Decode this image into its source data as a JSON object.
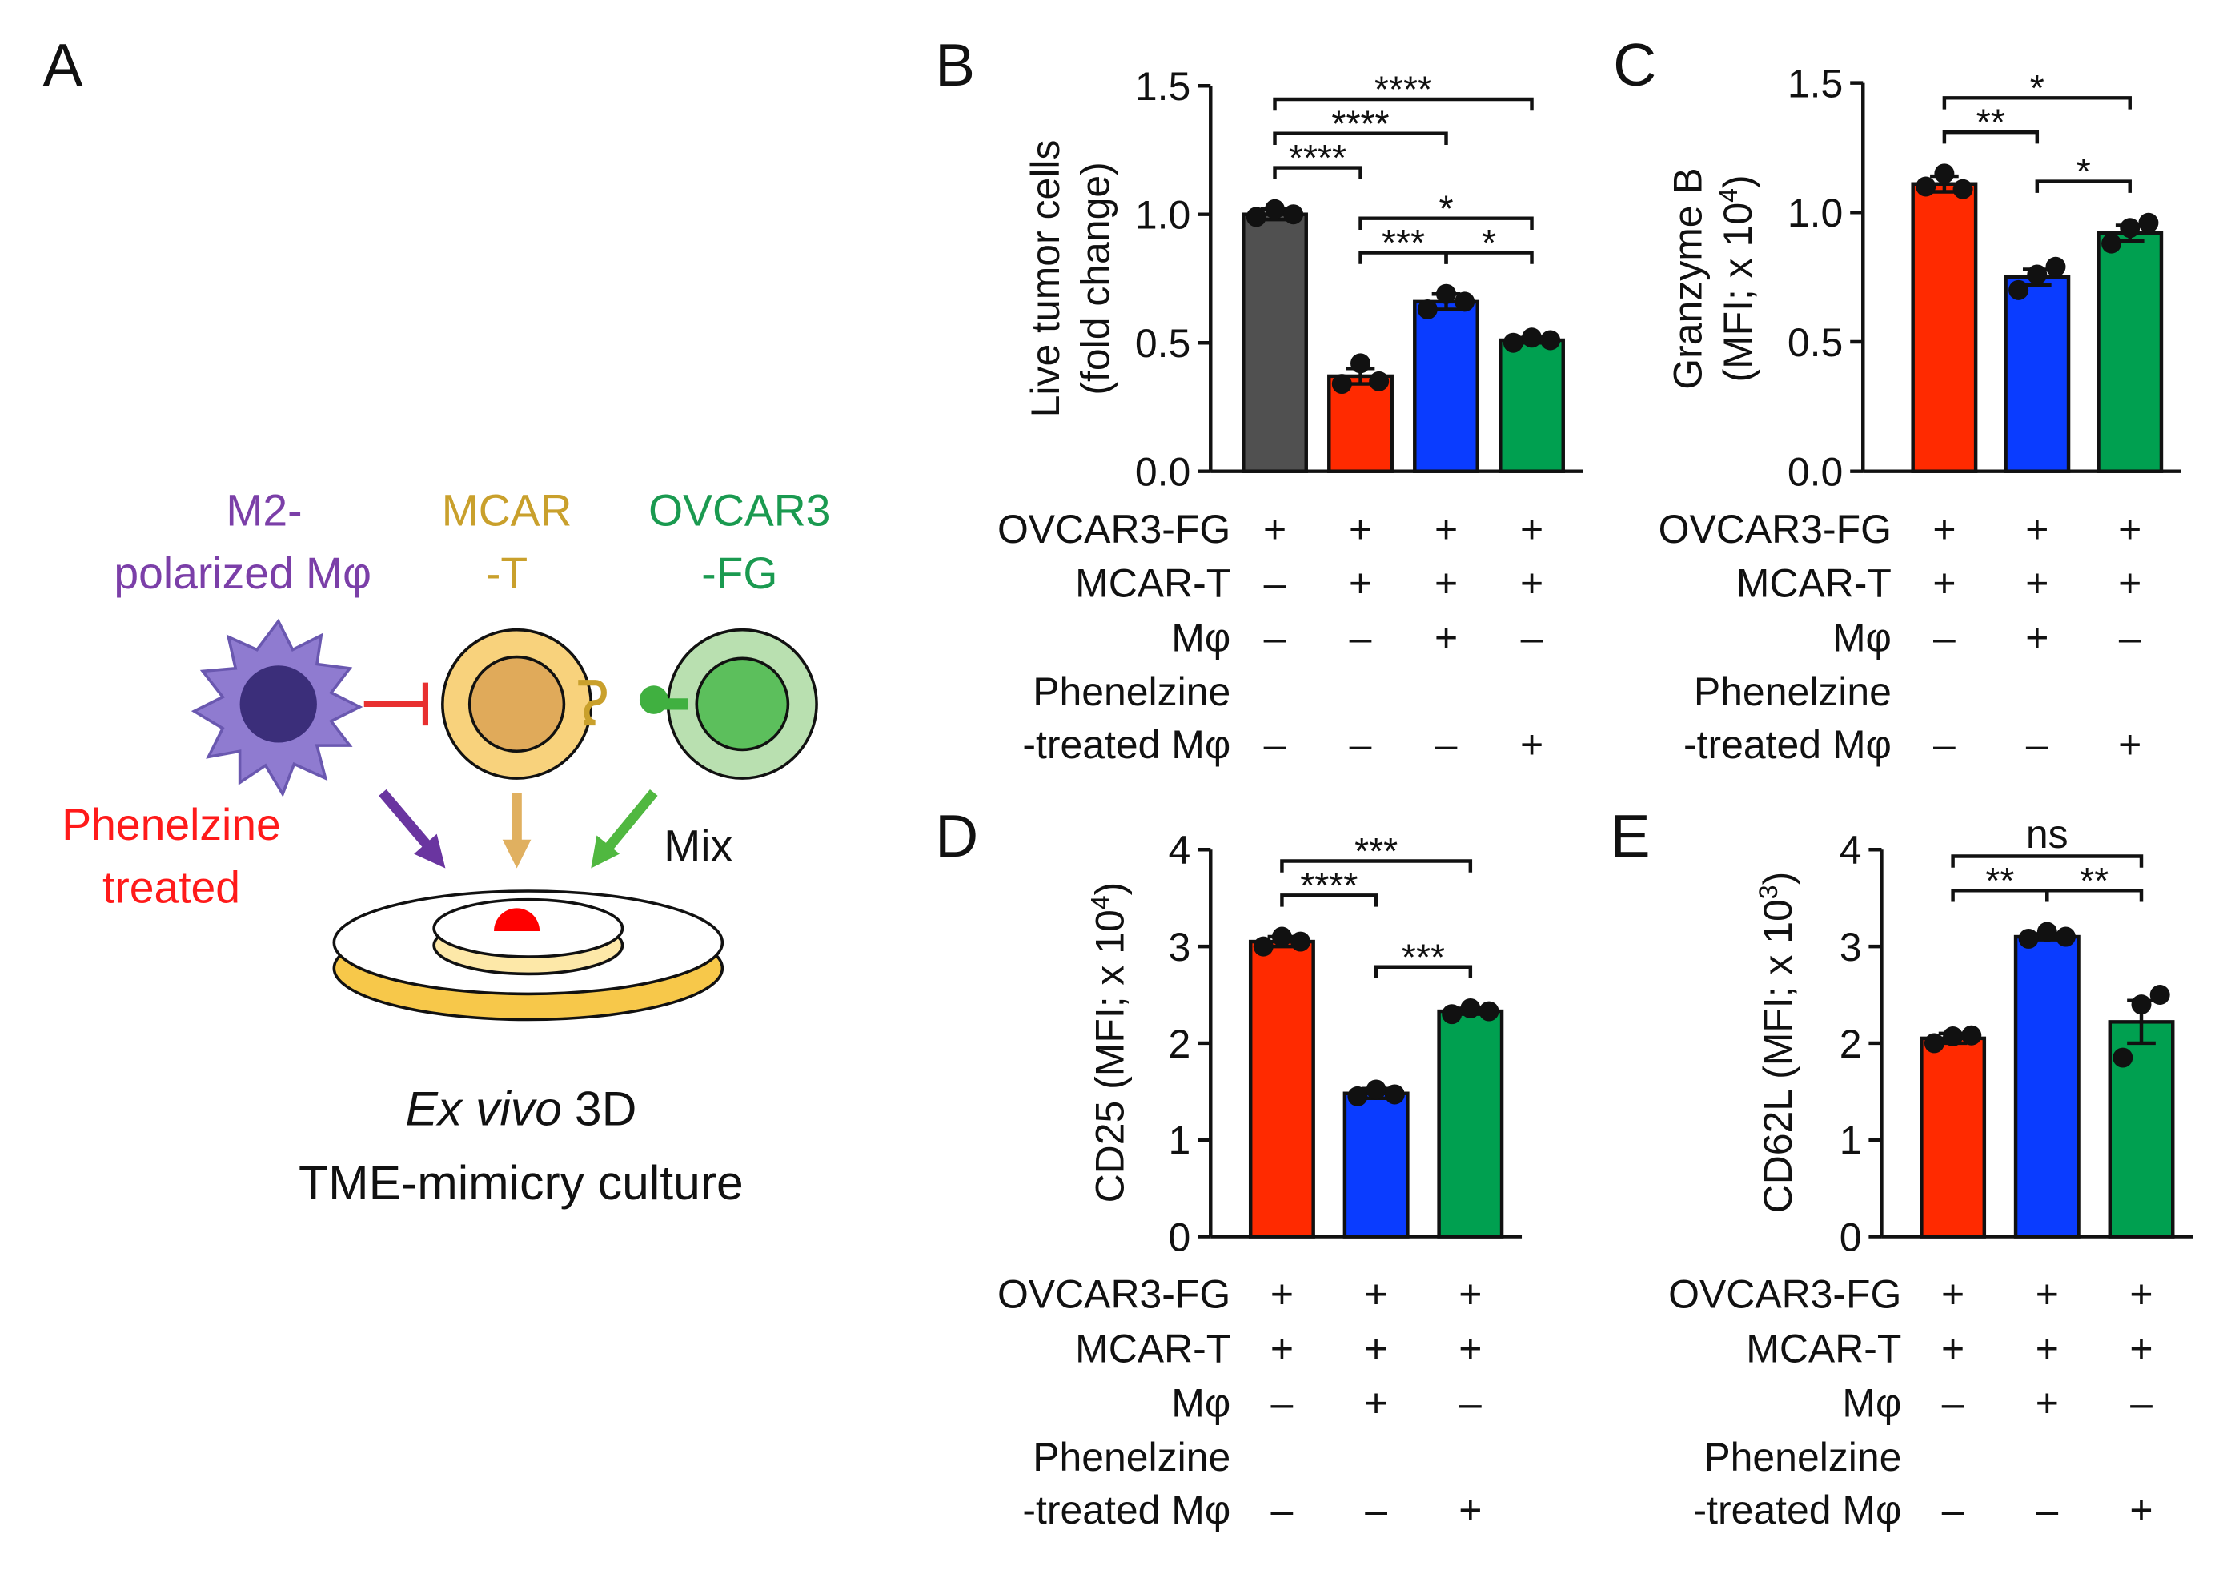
{
  "diagram": {
    "panel": "A",
    "macrophage": [
      "M2-",
      "polarized Mφ"
    ],
    "car_t": [
      "MCAR",
      "-T"
    ],
    "tumor": [
      "OVCAR3",
      "-FG"
    ],
    "treatment": [
      "Phenelzine",
      "treated"
    ],
    "mix": "Mix",
    "culture": {
      "italic": "Ex vivo",
      "rest": "3D",
      "line2": "TME-mimicry culture"
    }
  },
  "chart_data": [
    {
      "type": "bar",
      "panel": "B",
      "ylabel": [
        [
          "Live tumor cells"
        ],
        [
          "(fold change)"
        ]
      ],
      "ylim": [
        0,
        1.5
      ],
      "yticks": [
        {
          "value": 0,
          "label": "0.0"
        },
        {
          "value": 0.5,
          "label": "0.5"
        },
        {
          "value": 1,
          "label": "1.0"
        },
        {
          "value": 1.5,
          "label": "1.5"
        }
      ],
      "values": [
        1.0,
        0.37,
        0.66,
        0.51
      ],
      "errors": [
        0.02,
        0.03,
        0.03,
        0.01
      ],
      "colors": [
        "#505050",
        "#ff2a00",
        "#0a3cff",
        "#00a050"
      ],
      "points": [
        [
          0.99,
          1.02,
          1.0
        ],
        [
          0.34,
          0.42,
          0.35
        ],
        [
          0.63,
          0.69,
          0.66
        ],
        [
          0.5,
          0.52,
          0.51
        ]
      ],
      "comparisons": [
        {
          "pair": [
            0,
            1
          ],
          "label": "****"
        },
        {
          "pair": [
            0,
            2
          ],
          "label": "****"
        },
        {
          "pair": [
            0,
            3
          ],
          "label": "****"
        },
        {
          "pair": [
            1,
            2
          ],
          "label": "***"
        },
        {
          "pair": [
            2,
            3
          ],
          "label": "*"
        },
        {
          "pair": [
            1,
            3
          ],
          "label": "*"
        }
      ],
      "conditions": [
        {
          "label": [
            "OVCAR3-FG"
          ],
          "signs": [
            "+",
            "+",
            "+",
            "+"
          ]
        },
        {
          "label": [
            "MCAR-T"
          ],
          "signs": [
            "–",
            "+",
            "+",
            "+"
          ]
        },
        {
          "label": [
            "Mφ"
          ],
          "signs": [
            "–",
            "–",
            "+",
            "–"
          ]
        },
        {
          "label": [
            "Phenelzine",
            "-treated Mφ"
          ],
          "signs": [
            "–",
            "–",
            "–",
            "+"
          ]
        }
      ]
    },
    {
      "type": "bar",
      "panel": "C",
      "ylabel": [
        [
          "Granzyme B"
        ],
        [
          "(MFI; x 10",
          "4",
          ")"
        ]
      ],
      "ylim": [
        0,
        1.5
      ],
      "yticks": [
        {
          "value": 0,
          "label": "0.0"
        },
        {
          "value": 0.5,
          "label": "0.5"
        },
        {
          "value": 1,
          "label": "1.0"
        },
        {
          "value": 1.5,
          "label": "1.5"
        }
      ],
      "values": [
        1.11,
        0.75,
        0.92
      ],
      "errors": [
        0.03,
        0.03,
        0.03
      ],
      "colors": [
        "#ff2a00",
        "#0a3cff",
        "#00a050"
      ],
      "points": [
        [
          1.1,
          1.15,
          1.09
        ],
        [
          0.7,
          0.76,
          0.79
        ],
        [
          0.88,
          0.94,
          0.96
        ]
      ],
      "comparisons": [
        {
          "pair": [
            0,
            1
          ],
          "label": "**"
        },
        {
          "pair": [
            1,
            2
          ],
          "label": "*"
        },
        {
          "pair": [
            0,
            2
          ],
          "label": "*"
        }
      ],
      "conditions": [
        {
          "label": [
            "OVCAR3-FG"
          ],
          "signs": [
            "+",
            "+",
            "+"
          ]
        },
        {
          "label": [
            "MCAR-T"
          ],
          "signs": [
            "+",
            "+",
            "+"
          ]
        },
        {
          "label": [
            "Mφ"
          ],
          "signs": [
            "–",
            "+",
            "–"
          ]
        },
        {
          "label": [
            "Phenelzine",
            "-treated Mφ"
          ],
          "signs": [
            "–",
            "–",
            "+"
          ]
        }
      ]
    },
    {
      "type": "bar",
      "panel": "D",
      "ylabel": [
        [
          "CD25 (MFI; x 10",
          "4",
          ")"
        ]
      ],
      "ylim": [
        0,
        4
      ],
      "yticks": [
        0,
        1,
        2,
        3,
        4
      ],
      "values": [
        3.05,
        1.48,
        2.33
      ],
      "errors": [
        0.05,
        0.05,
        0.03
      ],
      "colors": [
        "#ff2a00",
        "#0a3cff",
        "#00a050"
      ],
      "points": [
        [
          3.0,
          3.1,
          3.05
        ],
        [
          1.45,
          1.52,
          1.47
        ],
        [
          2.3,
          2.36,
          2.33
        ]
      ],
      "comparisons": [
        {
          "pair": [
            0,
            1
          ],
          "label": "****"
        },
        {
          "pair": [
            1,
            2
          ],
          "label": "***"
        },
        {
          "pair": [
            0,
            2
          ],
          "label": "***"
        }
      ],
      "conditions": [
        {
          "label": [
            "OVCAR3-FG"
          ],
          "signs": [
            "+",
            "+",
            "+"
          ]
        },
        {
          "label": [
            "MCAR-T"
          ],
          "signs": [
            "+",
            "+",
            "+"
          ]
        },
        {
          "label": [
            "Mφ"
          ],
          "signs": [
            "–",
            "+",
            "–"
          ]
        },
        {
          "label": [
            "Phenelzine",
            "-treated Mφ"
          ],
          "signs": [
            "–",
            "–",
            "+"
          ]
        }
      ]
    },
    {
      "type": "bar",
      "panel": "E",
      "ylabel": [
        [
          "CD62L (MFI; x 10",
          "3",
          ")"
        ]
      ],
      "ylim": [
        0,
        4
      ],
      "yticks": [
        0,
        1,
        2,
        3,
        4
      ],
      "values": [
        2.05,
        3.1,
        2.22
      ],
      "errors": [
        0.05,
        0.03,
        0.22
      ],
      "colors": [
        "#ff2a00",
        "#0a3cff",
        "#00a050"
      ],
      "points": [
        [
          2.0,
          2.07,
          2.08
        ],
        [
          3.08,
          3.15,
          3.1
        ],
        [
          1.85,
          2.4,
          2.5
        ]
      ],
      "comparisons": [
        {
          "pair": [
            0,
            1
          ],
          "label": "**"
        },
        {
          "pair": [
            1,
            2
          ],
          "label": "**"
        },
        {
          "pair": [
            0,
            2
          ],
          "label": "ns"
        }
      ],
      "conditions": [
        {
          "label": [
            "OVCAR3-FG"
          ],
          "signs": [
            "+",
            "+",
            "+"
          ]
        },
        {
          "label": [
            "MCAR-T"
          ],
          "signs": [
            "+",
            "+",
            "+"
          ]
        },
        {
          "label": [
            "Mφ"
          ],
          "signs": [
            "–",
            "+",
            "–"
          ]
        },
        {
          "label": [
            "Phenelzine",
            "-treated Mφ"
          ],
          "signs": [
            "–",
            "–",
            "+"
          ]
        }
      ]
    }
  ]
}
